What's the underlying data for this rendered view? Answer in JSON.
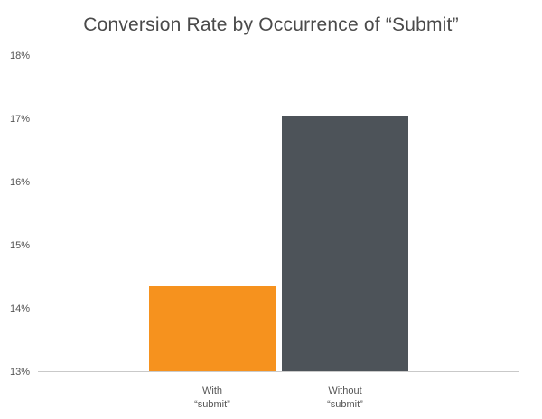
{
  "chart_data": {
    "type": "bar",
    "title": "Conversion Rate by Occurrence of “Submit”",
    "categories": [
      "With “submit”",
      "Without “submit”"
    ],
    "values": [
      14.35,
      17.05
    ],
    "bar_colors": [
      "#F6921E",
      "#4D5359"
    ],
    "xlabel": "",
    "ylabel": "",
    "ylim": [
      13,
      18
    ],
    "ytick_values": [
      13,
      14,
      15,
      16,
      17,
      18
    ],
    "ytick_labels": [
      "13%",
      "14%",
      "15%",
      "16%",
      "17%",
      "18%"
    ],
    "xlabel_lines": [
      [
        "With",
        "“submit”"
      ],
      [
        "Without",
        "“submit”"
      ]
    ],
    "grid": false,
    "legend": "none",
    "axis_line_color": "#c9c9c9"
  }
}
